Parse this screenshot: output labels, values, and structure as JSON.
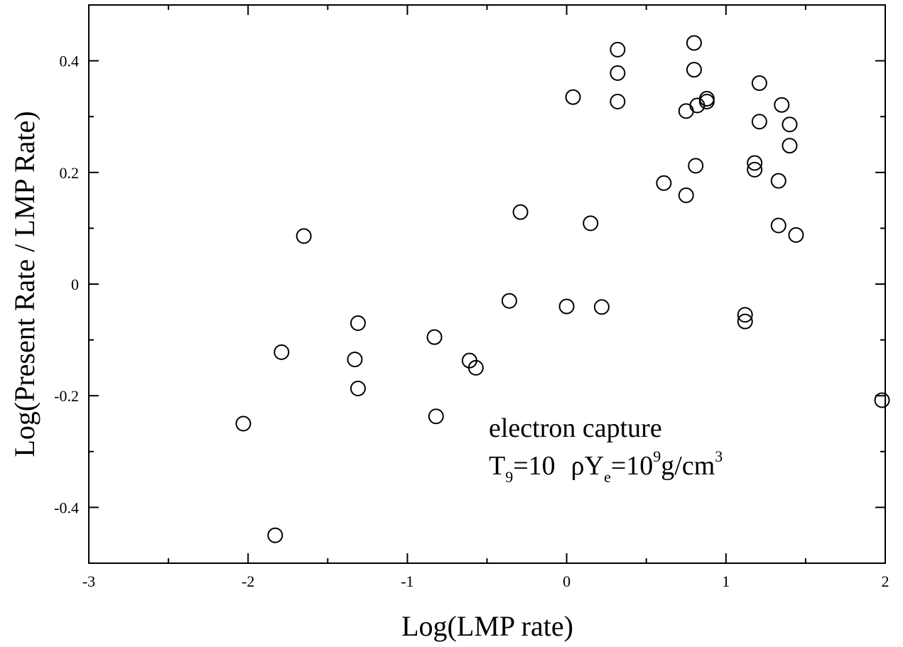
{
  "chart_data": {
    "type": "scatter",
    "title": "",
    "xlabel": "Log(LMP rate)",
    "ylabel": "Log(Present Rate / LMP Rate)",
    "xlim": [
      -3,
      2
    ],
    "ylim": [
      -0.5,
      0.5
    ],
    "grid": false,
    "marker": "open-circle",
    "x_ticks": [
      -3,
      -2,
      -1,
      0,
      1,
      2
    ],
    "x_tick_labels": [
      "-3",
      "-2",
      "-1",
      "0",
      "1",
      "2"
    ],
    "y_ticks": [
      -0.4,
      -0.2,
      0,
      0.2,
      0.4
    ],
    "y_tick_labels": [
      "-0.4",
      "-0.2",
      "0",
      "0.2",
      "0.4"
    ],
    "annotation": {
      "line1": "electron capture",
      "t_main": "T",
      "t_sub": "9",
      "t_value": "=10",
      "rho": "ρY",
      "rho_sub": "e",
      "rho_value": "=10",
      "rho_sup": "9",
      "unit": "g/cm",
      "unit_sup": "3"
    },
    "points": [
      [
        -2.03,
        -0.25
      ],
      [
        -1.83,
        -0.45
      ],
      [
        -1.79,
        -0.122
      ],
      [
        -1.65,
        0.086
      ],
      [
        -1.33,
        -0.135
      ],
      [
        -1.31,
        -0.07
      ],
      [
        -1.31,
        -0.187
      ],
      [
        -0.83,
        -0.095
      ],
      [
        -0.82,
        -0.237
      ],
      [
        -0.61,
        -0.137
      ],
      [
        -0.57,
        -0.15
      ],
      [
        -0.36,
        -0.03
      ],
      [
        -0.29,
        0.129
      ],
      [
        0.0,
        -0.04
      ],
      [
        0.04,
        0.335
      ],
      [
        0.15,
        0.109
      ],
      [
        0.22,
        -0.041
      ],
      [
        0.32,
        0.42
      ],
      [
        0.32,
        0.378
      ],
      [
        0.32,
        0.327
      ],
      [
        0.61,
        0.181
      ],
      [
        0.75,
        0.31
      ],
      [
        0.75,
        0.159
      ],
      [
        0.8,
        0.432
      ],
      [
        0.8,
        0.384
      ],
      [
        0.81,
        0.212
      ],
      [
        0.82,
        0.32
      ],
      [
        0.88,
        0.332
      ],
      [
        0.88,
        0.327
      ],
      [
        1.12,
        -0.055
      ],
      [
        1.12,
        -0.067
      ],
      [
        1.18,
        0.217
      ],
      [
        1.18,
        0.205
      ],
      [
        1.21,
        0.36
      ],
      [
        1.21,
        0.291
      ],
      [
        1.33,
        0.185
      ],
      [
        1.33,
        0.105
      ],
      [
        1.35,
        0.321
      ],
      [
        1.4,
        0.286
      ],
      [
        1.4,
        0.248
      ],
      [
        1.44,
        0.088
      ],
      [
        1.98,
        -0.208
      ]
    ]
  }
}
